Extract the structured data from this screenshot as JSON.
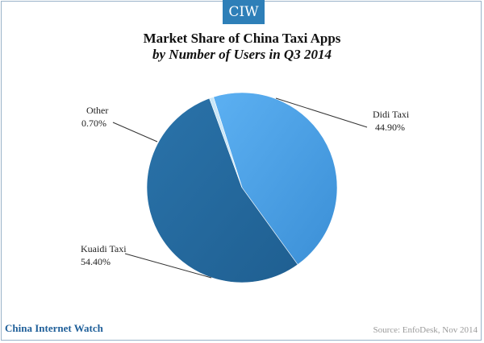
{
  "header": {
    "logo_text": "CIW"
  },
  "chart_data": {
    "type": "pie",
    "title": "Market Share of China Taxi Apps",
    "subtitle": "by Number of Users in Q3 2014",
    "slices": [
      {
        "name": "Didi Taxi",
        "value": 44.9,
        "label": "44.90%",
        "color": "#4ea3e8"
      },
      {
        "name": "Kuaidi Taxi",
        "value": 54.4,
        "label": "54.40%",
        "color": "#23669a"
      },
      {
        "name": "Other",
        "value": 0.7,
        "label": "0.70%",
        "color": "#c9e6f7"
      }
    ]
  },
  "footer": {
    "brand": "China Internet Watch",
    "source": "Source: EnfoDesk, Nov 2014"
  }
}
